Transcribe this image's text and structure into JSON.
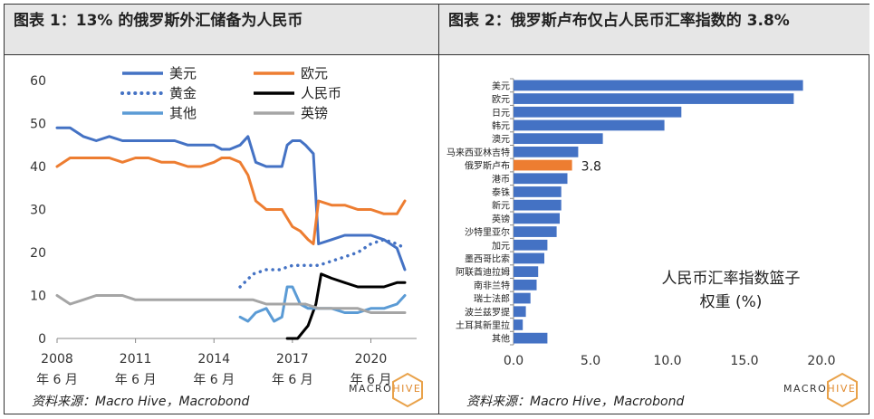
{
  "colors": {
    "usd": "#4472c4",
    "eur": "#ed7d31",
    "gold": "#4472c4",
    "cny": "#000000",
    "other": "#5b9bd5",
    "gbp": "#a5a5a5",
    "highlight": "#ed7d31",
    "bar": "#4472c4",
    "hexagon": "#e9a24a"
  },
  "left": {
    "title": "图表 1：13% 的俄罗斯外汇储备为人民币",
    "source": "资料来源：Macro Hive，Macrobond",
    "logo": {
      "part1": "MACRO",
      "part2": "HIVE"
    }
  },
  "right": {
    "title": "图表 2：俄罗斯卢布仅占人民币汇率指数的 3.8%",
    "source": "资料来源：Macro Hive，Macrobond",
    "logo": {
      "part1": "MACRO",
      "part2": "HIVE"
    }
  },
  "chart_data": [
    {
      "type": "line",
      "title": "",
      "ylim": [
        0,
        60
      ],
      "yticks": [
        0,
        10,
        20,
        30,
        40,
        50,
        60
      ],
      "x_range": [
        "2008-01",
        "2021-09"
      ],
      "xticks": [
        {
          "year": "2008",
          "month": "年 6 月",
          "x": 2008.0
        },
        {
          "year": "2011",
          "month": "年 6 月",
          "x": 2011.0
        },
        {
          "year": "2014",
          "month": "年 6 月",
          "x": 2014.0
        },
        {
          "year": "2017",
          "month": "年 6 月",
          "x": 2017.0
        },
        {
          "year": "2020",
          "month": "年 6 月",
          "x": 2020.0
        }
      ],
      "grid": false,
      "legend_position": "top-right",
      "series": [
        {
          "name": "美元",
          "key": "usd",
          "style": "solid",
          "x": [
            2008.0,
            2008.5,
            2009.0,
            2009.5,
            2010.0,
            2010.5,
            2011.0,
            2011.5,
            2012.0,
            2012.5,
            2013.0,
            2013.5,
            2014.0,
            2014.3,
            2014.6,
            2015.0,
            2015.3,
            2015.6,
            2016.0,
            2016.3,
            2016.6,
            2016.8,
            2017.0,
            2017.3,
            2017.5,
            2017.8,
            2018.0,
            2018.5,
            2019.0,
            2019.5,
            2020.0,
            2020.5,
            2021.0,
            2021.3
          ],
          "y": [
            49,
            49,
            47,
            46,
            47,
            46,
            46,
            46,
            46,
            46,
            45,
            45,
            45,
            44,
            44,
            45,
            47,
            41,
            40,
            40,
            40,
            45,
            46,
            46,
            45,
            43,
            22,
            23,
            24,
            24,
            24,
            23,
            21,
            16
          ]
        },
        {
          "name": "欧元",
          "key": "eur",
          "style": "solid",
          "x": [
            2008.0,
            2008.5,
            2009.0,
            2009.5,
            2010.0,
            2010.5,
            2011.0,
            2011.5,
            2012.0,
            2012.5,
            2013.0,
            2013.5,
            2014.0,
            2014.3,
            2014.6,
            2015.0,
            2015.3,
            2015.6,
            2016.0,
            2016.3,
            2016.6,
            2017.0,
            2017.3,
            2017.6,
            2017.8,
            2018.0,
            2018.5,
            2019.0,
            2019.5,
            2020.0,
            2020.5,
            2021.0,
            2021.3
          ],
          "y": [
            40,
            42,
            42,
            42,
            42,
            41,
            42,
            42,
            41,
            41,
            40,
            40,
            41,
            42,
            42,
            41,
            38,
            32,
            30,
            30,
            30,
            26,
            25,
            23,
            22,
            32,
            31,
            31,
            30,
            30,
            29,
            29,
            32
          ]
        },
        {
          "name": "黄金",
          "key": "gold",
          "style": "dotted",
          "x": [
            2015.0,
            2015.5,
            2016.0,
            2016.5,
            2017.0,
            2017.5,
            2018.0,
            2018.5,
            2019.0,
            2019.5,
            2020.0,
            2020.5,
            2021.0,
            2021.3
          ],
          "y": [
            12,
            15,
            16,
            16,
            17,
            17,
            17,
            18,
            19,
            20,
            22,
            23,
            22,
            21
          ]
        },
        {
          "name": "人民币",
          "key": "cny",
          "style": "solid",
          "x": [
            2016.8,
            2017.2,
            2017.6,
            2017.9,
            2018.1,
            2018.5,
            2019.0,
            2019.5,
            2020.0,
            2020.5,
            2021.0,
            2021.3
          ],
          "y": [
            0,
            0,
            3,
            8,
            15,
            14,
            13,
            12,
            12,
            12,
            13,
            13
          ]
        },
        {
          "name": "其他",
          "key": "other",
          "style": "solid",
          "x": [
            2015.0,
            2015.3,
            2015.6,
            2016.0,
            2016.3,
            2016.6,
            2016.8,
            2017.0,
            2017.3,
            2017.6,
            2018.0,
            2018.5,
            2019.0,
            2019.5,
            2020.0,
            2020.5,
            2021.0,
            2021.3
          ],
          "y": [
            5,
            4,
            6,
            7,
            4,
            5,
            12,
            12,
            8,
            7,
            7,
            7,
            6,
            6,
            7,
            7,
            8,
            10
          ]
        },
        {
          "name": "英镑",
          "key": "gbp",
          "style": "solid",
          "x": [
            2008.0,
            2008.5,
            2009.0,
            2009.5,
            2010.0,
            2010.5,
            2011.0,
            2011.5,
            2012.0,
            2012.5,
            2013.0,
            2013.5,
            2014.0,
            2014.5,
            2015.0,
            2015.5,
            2016.0,
            2016.5,
            2017.0,
            2017.5,
            2018.0,
            2018.5,
            2019.0,
            2019.5,
            2020.0,
            2020.5,
            2021.0,
            2021.3
          ],
          "y": [
            10,
            8,
            9,
            10,
            10,
            10,
            9,
            9,
            9,
            9,
            9,
            9,
            9,
            9,
            9,
            9,
            8,
            8,
            8,
            8,
            7,
            7,
            7,
            7,
            6,
            6,
            6,
            6
          ]
        }
      ]
    },
    {
      "type": "bar",
      "orientation": "horizontal",
      "title": "",
      "xlim": [
        0,
        20
      ],
      "xticks": [
        "0.0",
        "5.0",
        "10.0",
        "15.0",
        "20.0"
      ],
      "annotation": "人民币汇率指数篮子权重 (%)",
      "categories": [
        "美元",
        "欧元",
        "日元",
        "韩元",
        "澳元",
        "马来西亚林吉特",
        "俄罗斯卢布",
        "港币",
        "泰铢",
        "新元",
        "英镑",
        "沙特里亚尔",
        "加元",
        "墨西哥比索",
        "阿联酋迪拉姆",
        "南非兰特",
        "瑞士法郎",
        "波兰兹罗提",
        "土耳其新里拉",
        "其他"
      ],
      "values": [
        18.8,
        18.2,
        10.9,
        9.8,
        5.8,
        4.2,
        3.8,
        3.5,
        3.1,
        3.1,
        3.0,
        2.8,
        2.2,
        2.0,
        1.6,
        1.5,
        1.1,
        0.8,
        0.6,
        2.2
      ],
      "highlight_index": 6,
      "highlight_label": "3.8"
    }
  ]
}
